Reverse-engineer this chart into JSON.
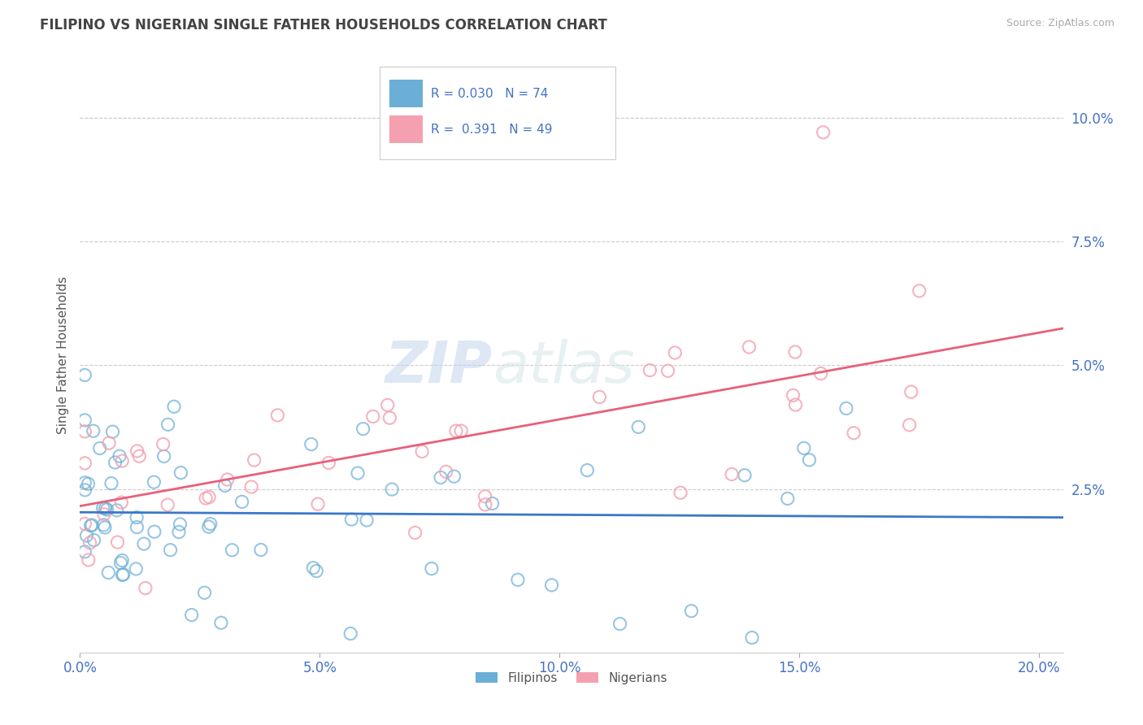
{
  "title": "FILIPINO VS NIGERIAN SINGLE FATHER HOUSEHOLDS CORRELATION CHART",
  "source_text": "Source: ZipAtlas.com",
  "ylabel": "Single Father Households",
  "legend_filipinos": "Filipinos",
  "legend_nigerians": "Nigerians",
  "r_filipino": 0.03,
  "n_filipino": 74,
  "r_nigerian": 0.391,
  "n_nigerian": 49,
  "xlim": [
    0.0,
    0.205
  ],
  "ylim": [
    -0.008,
    0.112
  ],
  "xticks": [
    0.0,
    0.05,
    0.1,
    0.15,
    0.2
  ],
  "yticks": [
    0.025,
    0.05,
    0.075,
    0.1
  ],
  "ytick_labels_right": [
    "2.5%",
    "5.0%",
    "7.5%",
    "10.0%"
  ],
  "xtick_labels": [
    "0.0%",
    "5.0%",
    "10.0%",
    "15.0%",
    "20.0%"
  ],
  "color_filipino": "#6BAED6",
  "color_nigerian": "#F4A0B0",
  "color_line_filipino": "#3A78C9",
  "color_line_nigerian": "#E8607A",
  "color_text_blue": "#4472C4",
  "background_color": "#FFFFFF",
  "grid_color": "#CCCCCC",
  "title_color": "#444444",
  "ylabel_color": "#555555",
  "watermark_zip": "ZIP",
  "watermark_atlas": "atlas",
  "watermark_color": "#E8EEF8"
}
